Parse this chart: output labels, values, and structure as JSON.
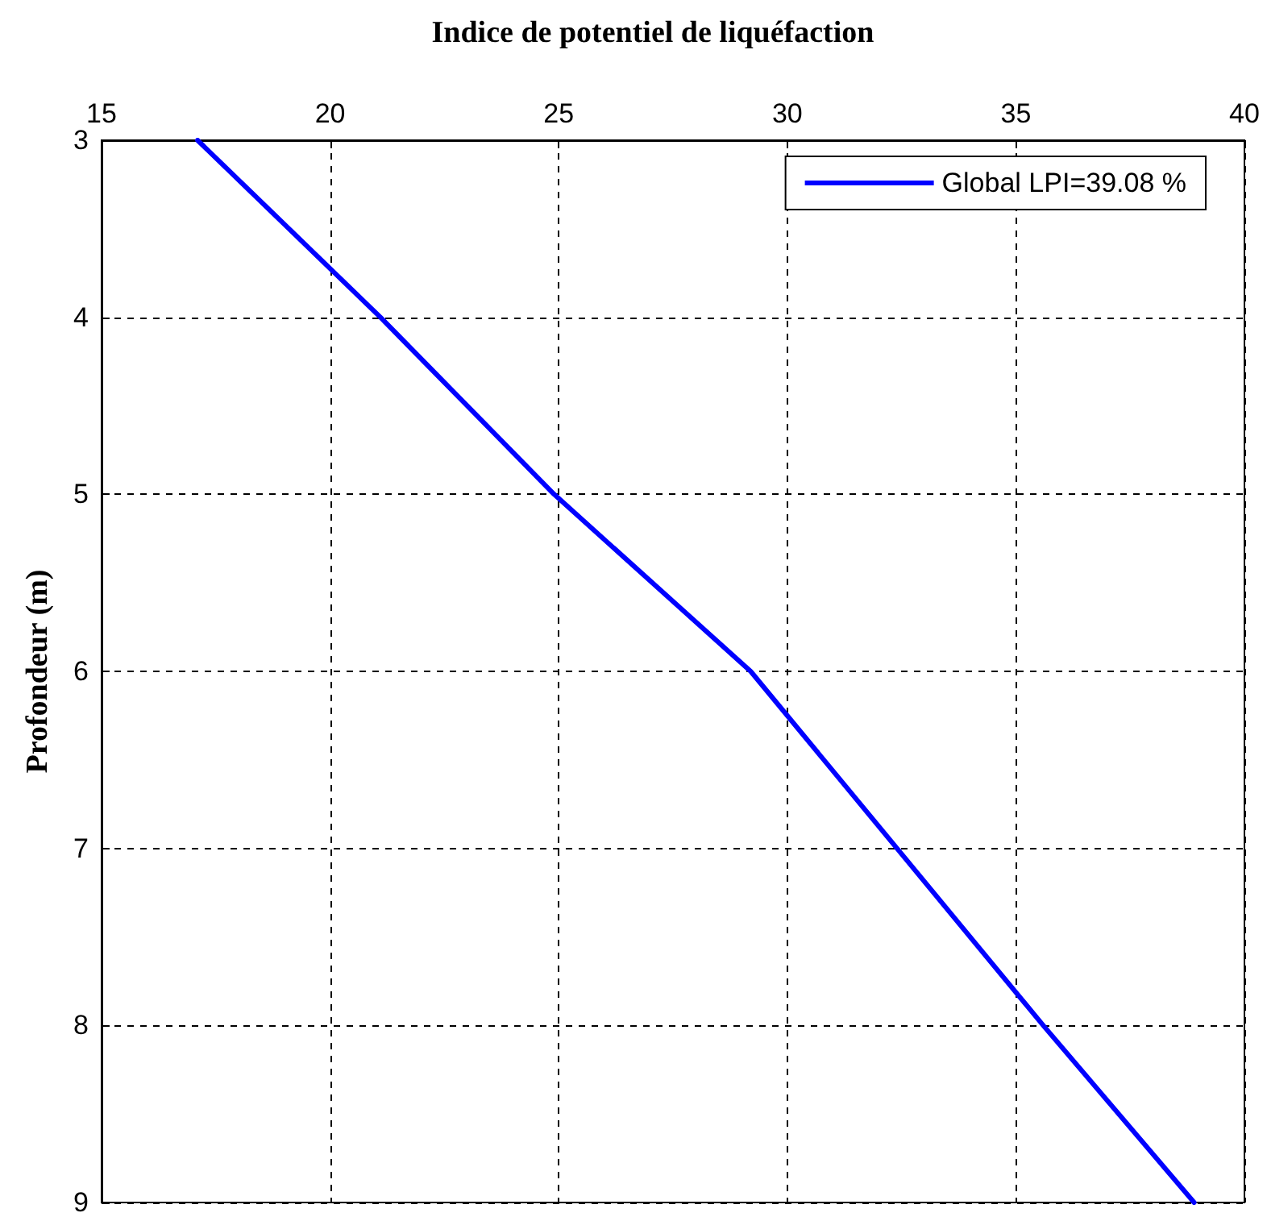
{
  "chart_data": {
    "type": "line",
    "title": "Indice de potentiel de liquéfaction",
    "ylabel": "Profondeur (m)",
    "series": [
      {
        "name": "Global LPI=39.08 %",
        "color": "#0000ff",
        "x": [
          17.1,
          21.1,
          24.9,
          29.2,
          32.4,
          35.6,
          38.9
        ],
        "values": [
          3,
          4,
          5,
          6,
          7,
          8,
          9
        ]
      }
    ],
    "xlim": [
      15,
      40
    ],
    "xticks": [
      15,
      20,
      25,
      30,
      35,
      40
    ],
    "ylim": [
      9,
      3
    ],
    "yticks": [
      3,
      4,
      5,
      6,
      7,
      8,
      9
    ],
    "grid": true,
    "legend": "top right",
    "marker": "none",
    "line_style": "solid"
  }
}
